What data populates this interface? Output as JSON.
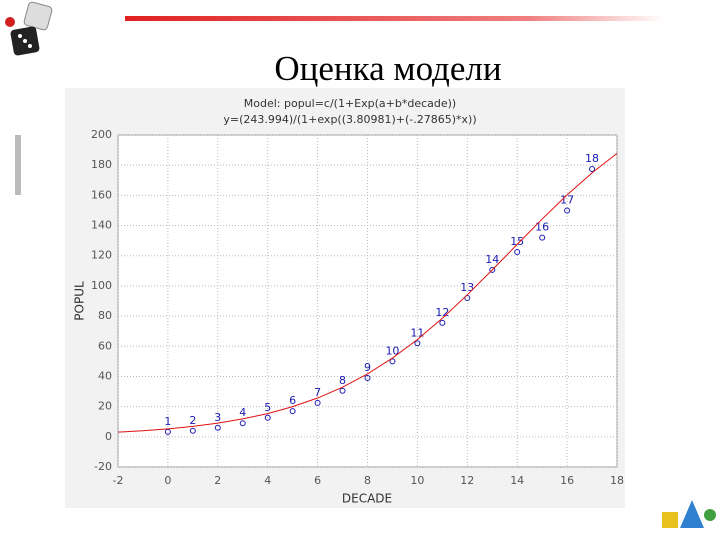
{
  "slide_title": "Оценка модели",
  "chart_data": {
    "type": "scatter",
    "title": "Model: popul=c/(1+Exp(a+b*decade))",
    "subtitle": "y=(243.994)/(1+exp((3.80981)+(-.27865)*x))",
    "x_label": "DECADE",
    "y_label": "POPUL",
    "xlim": [
      -2,
      18
    ],
    "xticks": [
      -2,
      0,
      2,
      4,
      6,
      8,
      10,
      12,
      14,
      16,
      18
    ],
    "ylim": [
      -20,
      200
    ],
    "yticks": [
      -20,
      0,
      20,
      40,
      60,
      80,
      100,
      120,
      140,
      160,
      180,
      200
    ],
    "grid": true,
    "series": [
      {
        "style": "points",
        "color": "#1a1ab4",
        "x": [
          0,
          1,
          2,
          3,
          4,
          5,
          6,
          7,
          8,
          9,
          10,
          11,
          12,
          13,
          14,
          15,
          16,
          17
        ],
        "values": [
          3.3,
          4,
          6,
          9,
          12.6,
          17,
          22.5,
          30.5,
          39,
          50,
          62,
          75.5,
          92,
          110.6,
          122.5,
          132,
          150,
          177.5
        ],
        "point_labels": [
          "1",
          "2",
          "3",
          "4",
          "5",
          "6",
          "7",
          "8",
          "9",
          "10",
          "11",
          "12",
          "13",
          "14",
          "15",
          "16",
          "17",
          "18"
        ]
      },
      {
        "style": "line",
        "color": "#e01010",
        "x": [
          -2,
          -1,
          0,
          1,
          2,
          3,
          4,
          5,
          6,
          7,
          8,
          9,
          10,
          11,
          12,
          13,
          14,
          15,
          16,
          17,
          18
        ],
        "values": [
          3.1,
          4.0,
          5.3,
          6.9,
          9.1,
          11.9,
          15.4,
          20.0,
          25.7,
          32.9,
          41.7,
          52.2,
          64.5,
          78.6,
          94.1,
          110.6,
          127.5,
          144.3,
          160.3,
          174.9,
          187.8
        ]
      }
    ]
  }
}
